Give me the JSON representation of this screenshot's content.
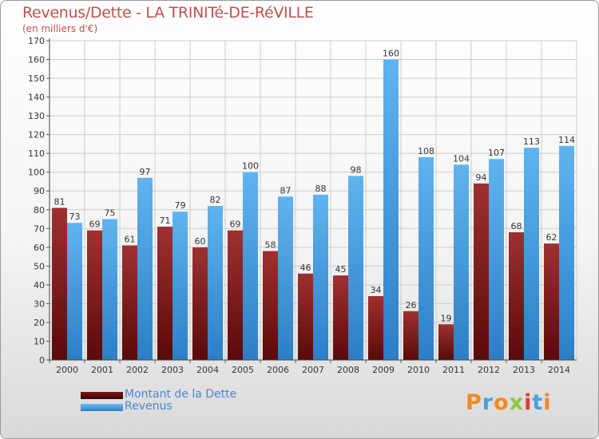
{
  "header": {
    "title": "Revenus/Dette - LA TRINITé-DE-RéVILLE",
    "subtitle": "(en milliers d'€)"
  },
  "legend": {
    "items": [
      {
        "label": "Montant de la Dette",
        "color": "#8b1a1a"
      },
      {
        "label": "Revenus",
        "color": "#4da3e6"
      }
    ]
  },
  "logo": {
    "text": "Proxiti"
  },
  "chart_data": {
    "type": "bar",
    "categories": [
      "2000",
      "2001",
      "2002",
      "2003",
      "2004",
      "2005",
      "2006",
      "2007",
      "2008",
      "2009",
      "2010",
      "2011",
      "2012",
      "2013",
      "2014"
    ],
    "series": [
      {
        "name": "Montant de la Dette",
        "color": "#8b1a1a",
        "values": [
          81,
          69,
          61,
          71,
          60,
          69,
          58,
          46,
          45,
          34,
          26,
          19,
          94,
          68,
          62
        ]
      },
      {
        "name": "Revenus",
        "color": "#4da3e6",
        "values": [
          73,
          75,
          97,
          79,
          82,
          100,
          87,
          88,
          98,
          160,
          108,
          104,
          107,
          113,
          114
        ]
      }
    ],
    "ylim": [
      0,
      170
    ],
    "yticks": [
      0,
      10,
      20,
      30,
      40,
      50,
      60,
      70,
      80,
      90,
      100,
      110,
      120,
      130,
      140,
      150,
      160,
      170
    ],
    "grid": true,
    "data_labels": true,
    "legend_position": "bottom-left"
  }
}
